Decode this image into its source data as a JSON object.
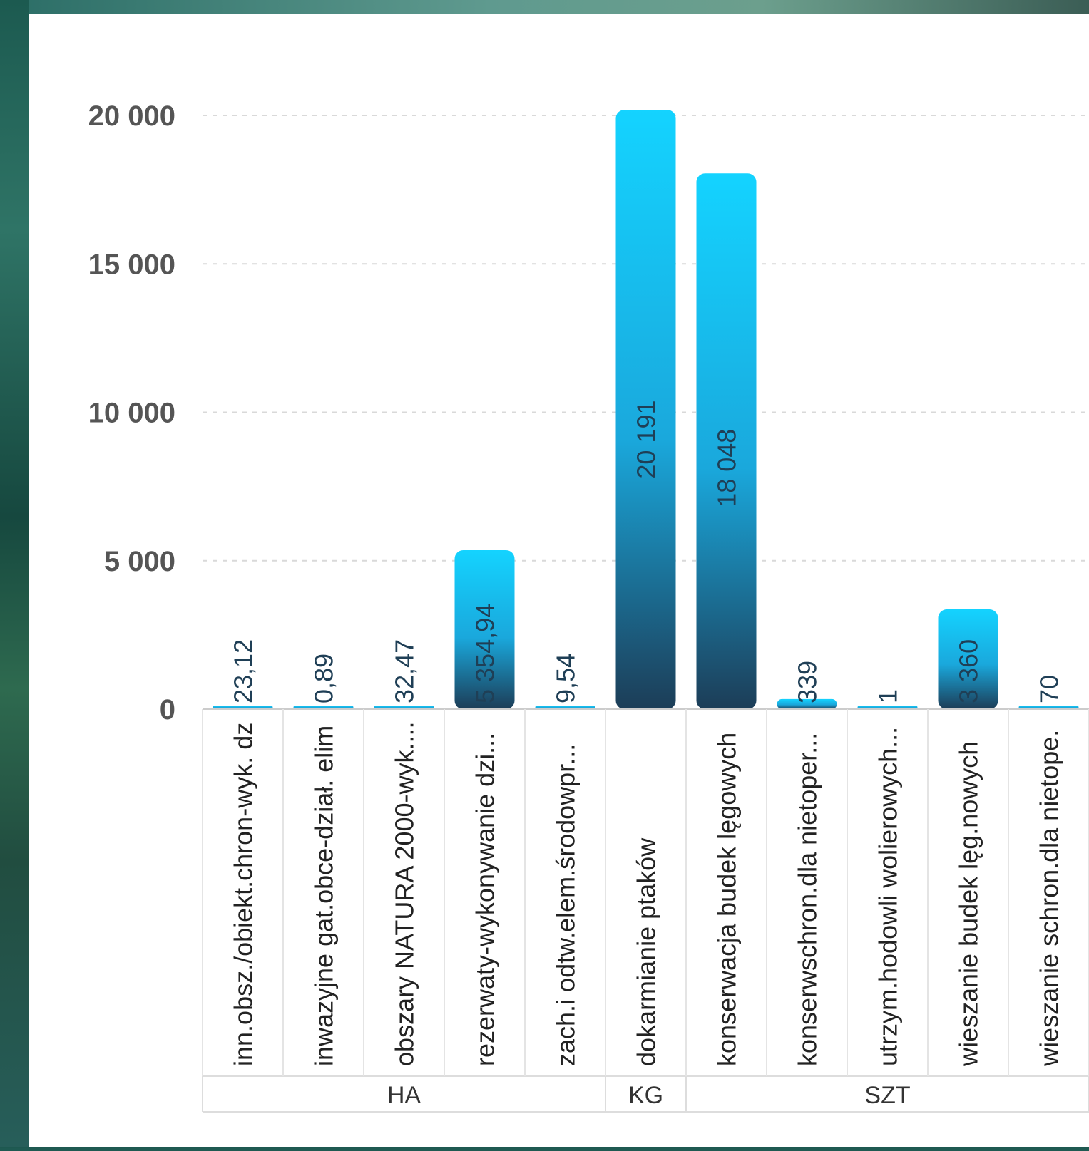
{
  "chart_data": {
    "type": "bar",
    "title": "",
    "xlabel": "",
    "ylabel": "",
    "ylim": [
      0,
      20000
    ],
    "yticks": [
      0,
      5000,
      10000,
      15000,
      20000
    ],
    "ytick_labels": [
      "0",
      "5 000",
      "10 000",
      "15 000",
      "20 000"
    ],
    "grid": true,
    "legend": "none",
    "colors": {
      "bar_top": "#14d3ff",
      "bar_bottom": "#1c3d57",
      "grid": "#d9d9d9",
      "axis": "#cccccc"
    },
    "groups": [
      {
        "label": "HA",
        "count": 5
      },
      {
        "label": "KG",
        "count": 1
      },
      {
        "label": "SZT",
        "count": 5
      }
    ],
    "categories": [
      "inn.obsz./obiekt.chron-wyk. dz",
      "inwazyjne gat.obce-dział. elim",
      "obszary NATURA 2000-wyk....",
      "rezerwaty-wykonywanie dzi...",
      "zach.i odtw.elem.środowpr...",
      "dokarmianie ptaków",
      "konserwacja budek lęgowych",
      "konserwschron.dla nietoper...",
      "utrzym.hodowli wolierowych...",
      "wieszanie budek lęg.nowych",
      "wieszanie schron.dla nietope."
    ],
    "values": [
      23.12,
      0.89,
      32.47,
      5354.94,
      9.54,
      20191,
      18048,
      339,
      1,
      3360,
      70
    ],
    "value_labels": [
      "23,12",
      "0,89",
      "32,47",
      "5 354,94",
      "9,54",
      "20 191",
      "18 048",
      "339",
      "1",
      "3 360",
      "70"
    ]
  }
}
